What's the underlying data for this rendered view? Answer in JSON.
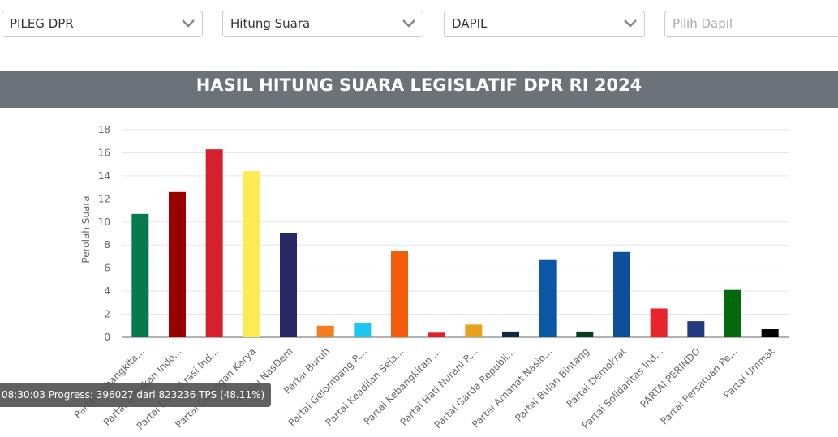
{
  "filters": [
    "PILEG DPR",
    "Hitung Suara",
    "DAPIL"
  ],
  "dapil_placeholder": "Pilih Dapil",
  "header": {
    "title": "HASIL HITUNG SUARA LEGISLATIF DPR RI 2024"
  },
  "chart_data": {
    "type": "bar",
    "y_label": "Perolah Suara",
    "categories": [
      "Partai Kebangkita...",
      "Partai Gerakan Indo...",
      "Partai Demokrasi Ind...",
      "Partai Golongan Karya",
      "Partai NasDem",
      "Partai Buruh",
      "Partai Gelombang R...",
      "Partai Keadilan Seja...",
      "Partai Kebangkitan ...",
      "Partai Hati Nurani R...",
      "Partai Garda Republi...",
      "Partai Amanat Nasio...",
      "Partai Bulan Bintang",
      "Partai Demokrat",
      "Partai Solidaritas Ind...",
      "PARTAI PERINDO",
      "Partai Persatuan Pe...",
      "Partai Ummat"
    ],
    "values": [
      10.7,
      12.6,
      16.3,
      14.4,
      9.0,
      1.0,
      1.2,
      7.5,
      0.4,
      1.1,
      0.5,
      6.7,
      0.5,
      7.4,
      2.5,
      1.4,
      4.1,
      0.7
    ],
    "colors": [
      "#067a4d",
      "#990000",
      "#d7202d",
      "#fcec52",
      "#282866",
      "#f47b20",
      "#1cc6ef",
      "#f25c0a",
      "#e51f24",
      "#e8a21f",
      "#0e2940",
      "#0a57a5",
      "#0b3a1e",
      "#0c4f9a",
      "#e6262b",
      "#233a80",
      "#04690c",
      "#000000"
    ],
    "ylim": [
      0,
      18
    ],
    "yticks": [
      0,
      2,
      4,
      6,
      8,
      10,
      12,
      14,
      16,
      18
    ],
    "grid": true
  },
  "tooltip": "08:30:03 Progress: 396027 dari 823236 TPS (48.11%)"
}
